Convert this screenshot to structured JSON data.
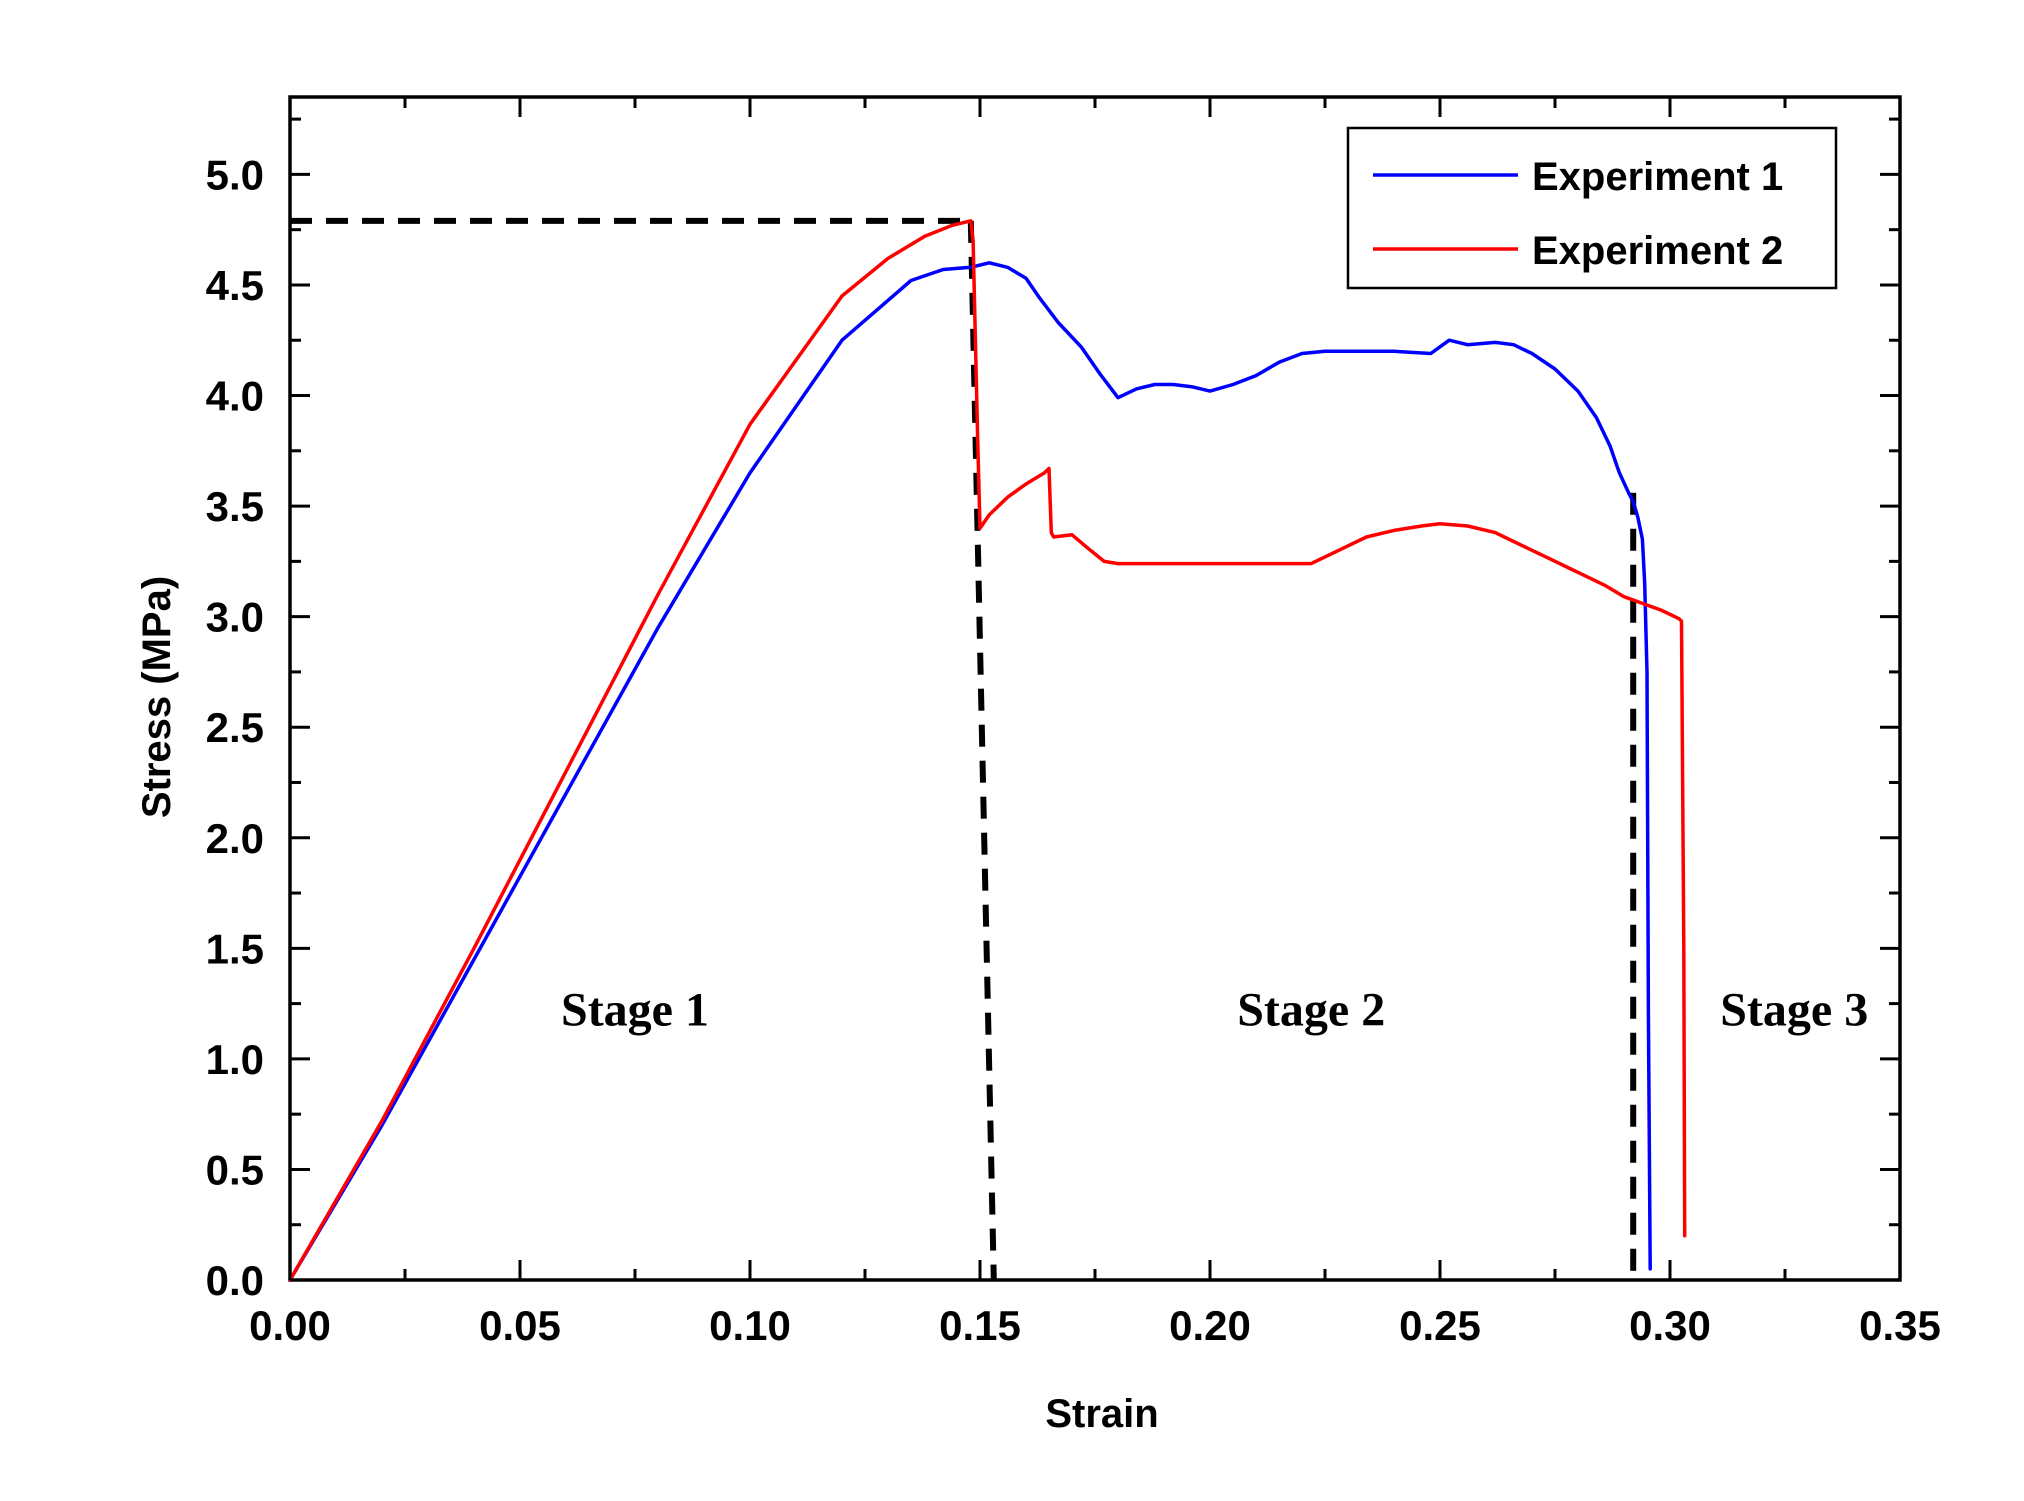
{
  "chart_data": {
    "type": "line",
    "xlabel": "Strain",
    "ylabel": "Stress (MPa)",
    "xlim": [
      0.0,
      0.35
    ],
    "ylim": [
      0.0,
      5.35
    ],
    "xticks": [
      0.0,
      0.05,
      0.1,
      0.15,
      0.2,
      0.25,
      0.3,
      0.35
    ],
    "xtick_labels": [
      "0.00",
      "0.05",
      "0.10",
      "0.15",
      "0.20",
      "0.25",
      "0.30",
      "0.35"
    ],
    "yticks": [
      0.0,
      0.5,
      1.0,
      1.5,
      2.0,
      2.5,
      3.0,
      3.5,
      4.0,
      4.5,
      5.0
    ],
    "ytick_labels": [
      "0.0",
      "0.5",
      "1.0",
      "1.5",
      "2.0",
      "2.5",
      "3.0",
      "3.5",
      "4.0",
      "4.5",
      "5.0"
    ],
    "legend_position": "top-right",
    "series": [
      {
        "name": "Experiment 1",
        "color": "#0000ff",
        "x": [
          0.0,
          0.02,
          0.04,
          0.06,
          0.08,
          0.1,
          0.12,
          0.135,
          0.142,
          0.148,
          0.152,
          0.156,
          0.16,
          0.163,
          0.167,
          0.172,
          0.176,
          0.18,
          0.184,
          0.188,
          0.192,
          0.196,
          0.2,
          0.205,
          0.21,
          0.215,
          0.22,
          0.225,
          0.23,
          0.24,
          0.248,
          0.252,
          0.256,
          0.262,
          0.266,
          0.27,
          0.275,
          0.28,
          0.284,
          0.287,
          0.289,
          0.291,
          0.292,
          0.293,
          0.294,
          0.2945,
          0.295,
          0.2953,
          0.2957
        ],
        "y": [
          0.0,
          0.7,
          1.45,
          2.2,
          2.95,
          3.65,
          4.25,
          4.52,
          4.57,
          4.58,
          4.6,
          4.58,
          4.53,
          4.44,
          4.33,
          4.22,
          4.1,
          3.99,
          4.03,
          4.05,
          4.05,
          4.04,
          4.02,
          4.05,
          4.09,
          4.15,
          4.19,
          4.2,
          4.2,
          4.2,
          4.19,
          4.25,
          4.23,
          4.24,
          4.23,
          4.19,
          4.12,
          4.02,
          3.9,
          3.77,
          3.65,
          3.56,
          3.52,
          3.45,
          3.35,
          3.15,
          2.75,
          1.2,
          0.05
        ]
      },
      {
        "name": "Experiment 2",
        "color": "#ff0000",
        "x": [
          0.0,
          0.02,
          0.04,
          0.06,
          0.08,
          0.1,
          0.12,
          0.13,
          0.138,
          0.144,
          0.148,
          0.1485,
          0.149,
          0.1495,
          0.15,
          0.152,
          0.156,
          0.16,
          0.164,
          0.165,
          0.1655,
          0.166,
          0.17,
          0.174,
          0.177,
          0.18,
          0.19,
          0.2,
          0.21,
          0.222,
          0.228,
          0.234,
          0.24,
          0.246,
          0.25,
          0.256,
          0.262,
          0.266,
          0.27,
          0.274,
          0.278,
          0.282,
          0.286,
          0.29,
          0.294,
          0.298,
          0.301,
          0.302,
          0.3025,
          0.303,
          0.3032
        ],
        "y": [
          0.0,
          0.72,
          1.5,
          2.3,
          3.1,
          3.87,
          4.45,
          4.62,
          4.72,
          4.77,
          4.79,
          4.7,
          4.25,
          3.8,
          3.4,
          3.46,
          3.54,
          3.6,
          3.65,
          3.67,
          3.38,
          3.36,
          3.37,
          3.3,
          3.25,
          3.24,
          3.24,
          3.24,
          3.24,
          3.24,
          3.3,
          3.36,
          3.39,
          3.41,
          3.42,
          3.41,
          3.38,
          3.34,
          3.3,
          3.26,
          3.22,
          3.18,
          3.14,
          3.09,
          3.06,
          3.03,
          3.0,
          2.99,
          2.98,
          1.5,
          0.2
        ]
      }
    ],
    "guide_lines": [
      {
        "x": [
          0.0,
          0.148
        ],
        "y": [
          4.79,
          4.79
        ]
      },
      {
        "x": [
          0.148,
          0.153
        ],
        "y": [
          4.79,
          0.0
        ]
      },
      {
        "x": [
          0.292,
          0.292
        ],
        "y": [
          3.56,
          0.0
        ]
      }
    ],
    "annotations": [
      {
        "text": "Stage 1",
        "x": 0.075,
        "y": 1.15
      },
      {
        "text": "Stage 2",
        "x": 0.222,
        "y": 1.15
      },
      {
        "text": "Stage 3",
        "x": 0.327,
        "y": 1.15
      }
    ]
  }
}
